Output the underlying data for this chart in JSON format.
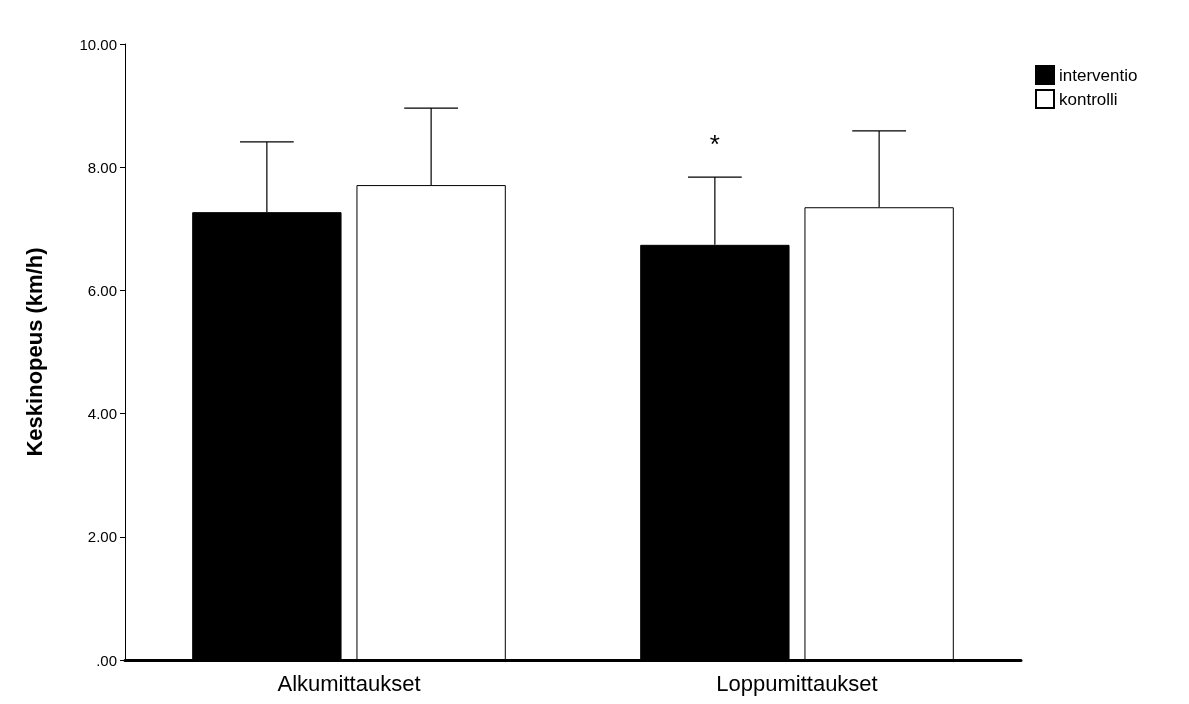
{
  "chart_data": {
    "type": "bar",
    "ylabel": "Keskinopeus (km/h)",
    "categories": [
      "Alkumittaukset",
      "Loppumittaukset"
    ],
    "series": [
      {
        "name": "interventio",
        "color": "#000000",
        "values": [
          7.27,
          6.74
        ],
        "errors": [
          [
            7.27,
            8.41
          ],
          [
            6.74,
            7.84
          ]
        ]
      },
      {
        "name": "kontrolli",
        "color": "#ffffff",
        "values": [
          7.71,
          7.35
        ],
        "errors": [
          [
            7.71,
            8.96
          ],
          [
            7.35,
            8.59
          ]
        ]
      }
    ],
    "ylim": [
      0,
      10
    ],
    "yticks": [
      {
        "value": 0,
        "label": ".00"
      },
      {
        "value": 2,
        "label": "2.00"
      },
      {
        "value": 4,
        "label": "4.00"
      },
      {
        "value": 6,
        "label": "6.00"
      },
      {
        "value": 8,
        "label": "8.00"
      },
      {
        "value": 10,
        "label": "10.00"
      }
    ],
    "annotations": [
      "*"
    ],
    "grid": false,
    "legend": "top right"
  }
}
